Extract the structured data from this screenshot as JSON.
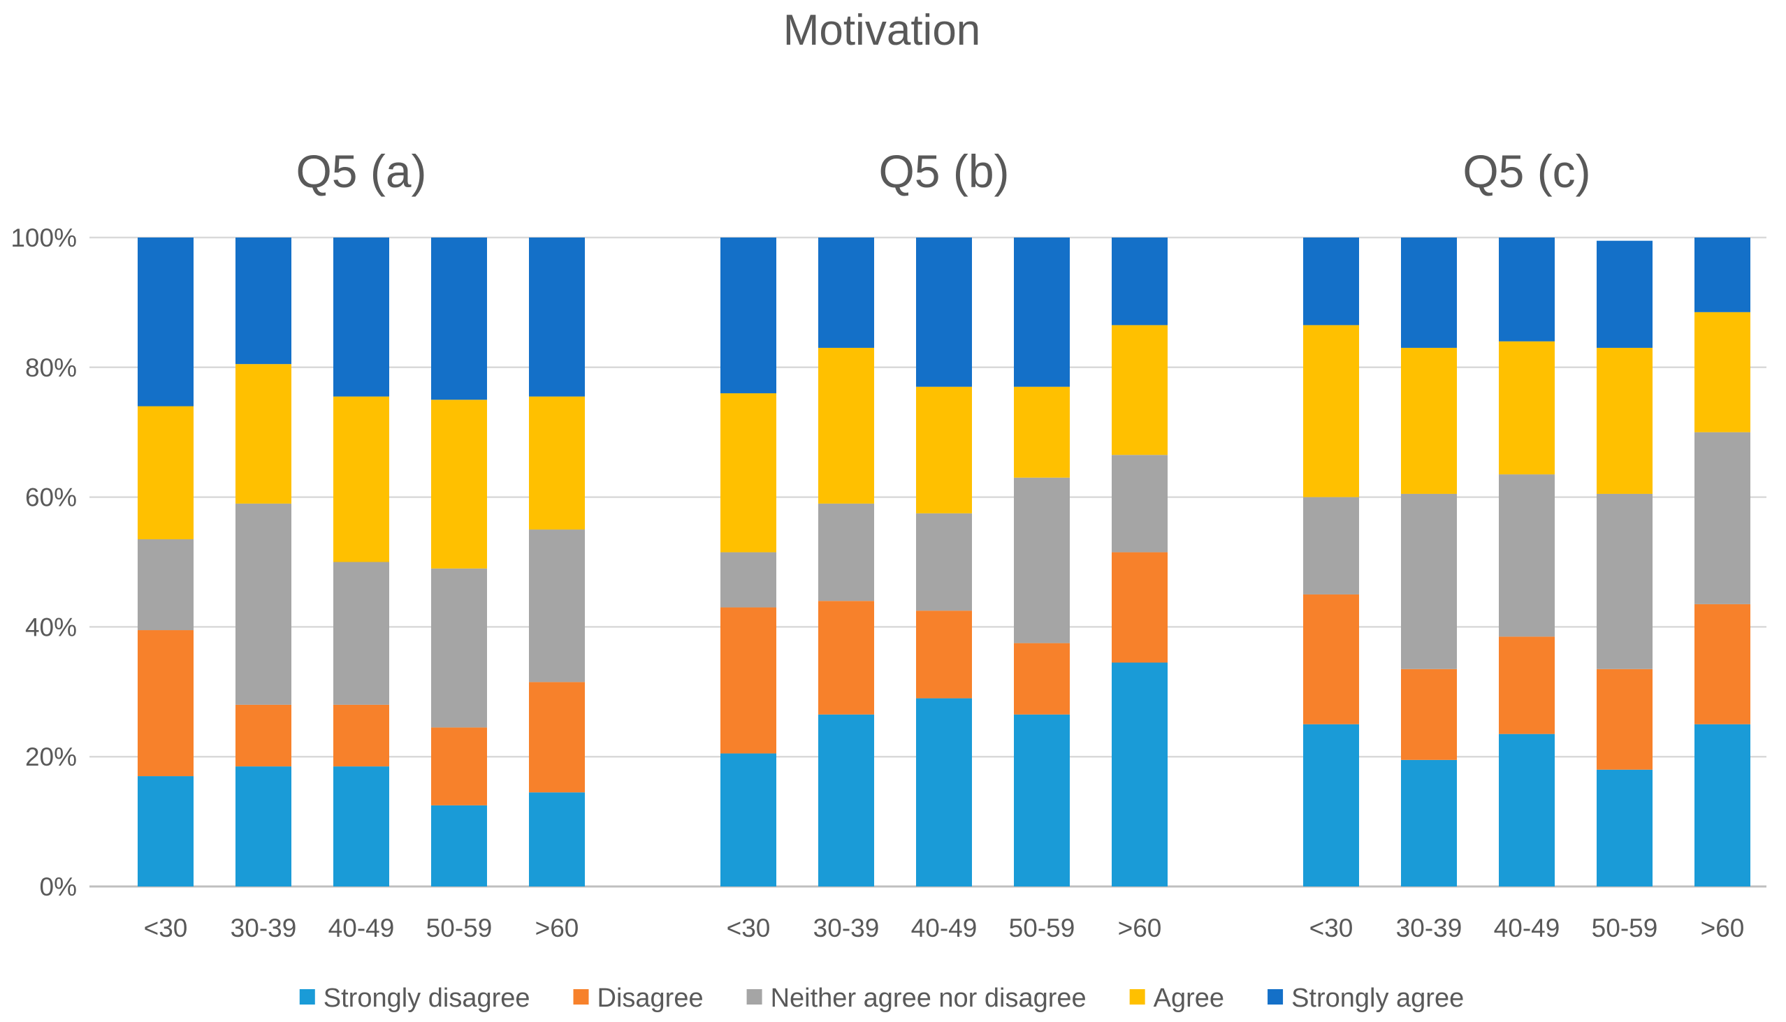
{
  "chart_data": {
    "type": "bar",
    "stacked": true,
    "normalized": true,
    "title": "Motivation",
    "panels": [
      "Q5 (a)",
      "Q5 (b)",
      "Q5 (c)"
    ],
    "categories": [
      "<30",
      "30-39",
      "40-49",
      "50-59",
      ">60"
    ],
    "y_ticks": [
      "0%",
      "20%",
      "40%",
      "60%",
      "80%",
      "100%"
    ],
    "ylim": [
      0,
      100
    ],
    "grid": true,
    "legend_position": "bottom",
    "series": [
      {
        "name": "Strongly disagree",
        "color": "#1A9BD7",
        "values": [
          [
            17,
            18.5,
            18.5,
            12.5,
            14.5
          ],
          [
            20.5,
            26.5,
            29,
            26.5,
            34.5
          ],
          [
            25,
            19.5,
            23.5,
            18,
            25
          ]
        ]
      },
      {
        "name": "Disagree",
        "color": "#F7812B",
        "values": [
          [
            22.5,
            9.5,
            9.5,
            12,
            17
          ],
          [
            22.5,
            17.5,
            13.5,
            11,
            17
          ],
          [
            20,
            14,
            15,
            15.5,
            18.5
          ]
        ]
      },
      {
        "name": "Neither agree nor disagree",
        "color": "#A5A5A5",
        "values": [
          [
            14,
            31,
            22,
            24.5,
            23.5
          ],
          [
            8.5,
            15,
            15,
            25.5,
            15
          ],
          [
            15,
            27,
            25,
            27,
            26.5
          ]
        ]
      },
      {
        "name": "Agree",
        "color": "#FFC000",
        "values": [
          [
            20.5,
            21.5,
            25.5,
            26,
            20.5
          ],
          [
            24.5,
            24,
            19.5,
            14,
            20
          ],
          [
            26.5,
            22.5,
            20.5,
            22.5,
            18.5
          ]
        ]
      },
      {
        "name": "Strongly agree",
        "color": "#1470C8",
        "values": [
          [
            26,
            19.5,
            24.5,
            25,
            24.5
          ],
          [
            24,
            17,
            23,
            23,
            13.5
          ],
          [
            13.5,
            17,
            16,
            16.5,
            11.5
          ]
        ]
      }
    ]
  }
}
